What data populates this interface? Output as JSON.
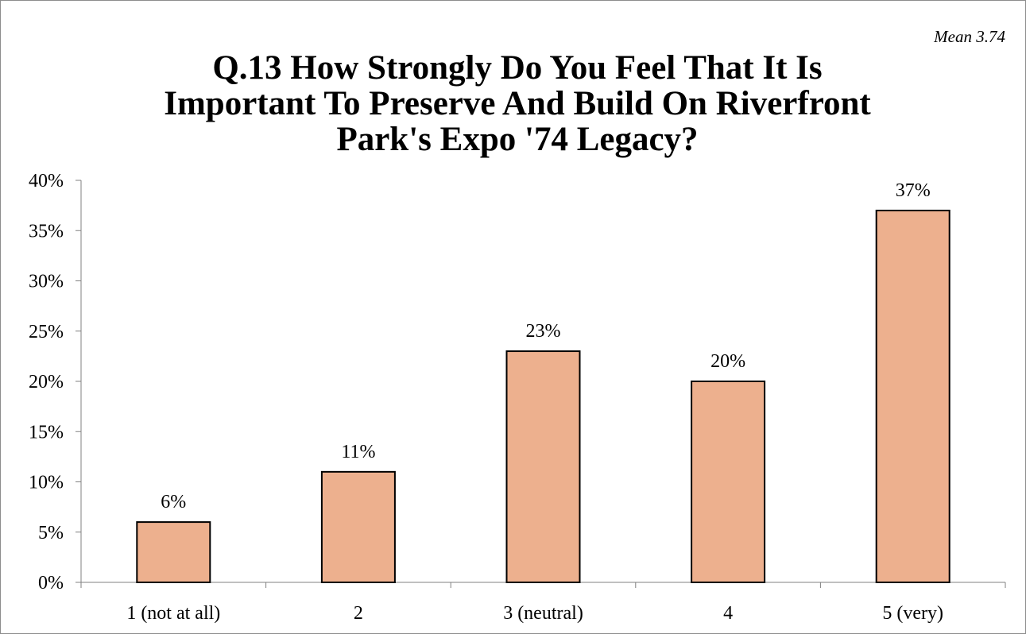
{
  "chart_data": {
    "type": "bar",
    "title_lines": [
      "Q.13 How Strongly Do You Feel That It Is",
      "Important To Preserve And Build On Riverfront",
      "Park's Expo '74 Legacy?"
    ],
    "annotation": "Mean 3.74",
    "categories": [
      "1 (not at all)",
      "2",
      "3 (neutral)",
      "4",
      "5 (very)"
    ],
    "values": [
      6,
      11,
      23,
      20,
      37
    ],
    "data_labels": [
      "6%",
      "11%",
      "23%",
      "20%",
      "37%"
    ],
    "y_ticks": [
      0,
      5,
      10,
      15,
      20,
      25,
      30,
      35,
      40
    ],
    "y_tick_labels": [
      "0%",
      "5%",
      "10%",
      "15%",
      "20%",
      "25%",
      "30%",
      "35%",
      "40%"
    ],
    "ylim": [
      0,
      40
    ],
    "xlabel": "",
    "ylabel": "",
    "grid": false,
    "legend": "none",
    "colors": {
      "bar_fill": "#EDB08E",
      "bar_stroke": "#000000",
      "axis": "#808080"
    }
  }
}
